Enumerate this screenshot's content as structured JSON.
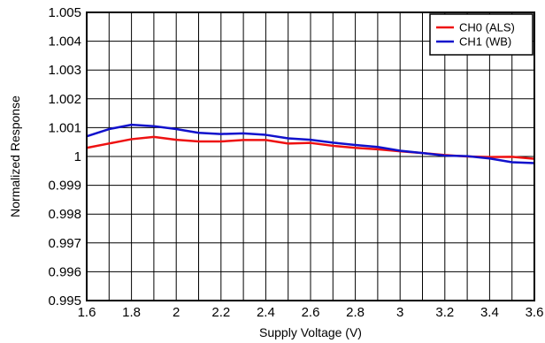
{
  "chart_data": {
    "type": "line",
    "title": "",
    "xlabel": "Supply Voltage (V)",
    "ylabel": "Normalized Response",
    "xlim": [
      1.6,
      3.6
    ],
    "ylim": [
      0.995,
      1.005
    ],
    "x_ticks": [
      "1.6",
      "1.8",
      "2",
      "2.2",
      "2.4",
      "2.6",
      "2.8",
      "3",
      "3.2",
      "3.4",
      "3.6"
    ],
    "y_ticks": [
      "0.995",
      "0.996",
      "0.997",
      "0.998",
      "0.999",
      "1",
      "1.001",
      "1.002",
      "1.003",
      "1.004",
      "1.005"
    ],
    "x_tick_values": [
      1.6,
      1.8,
      2.0,
      2.2,
      2.4,
      2.6,
      2.8,
      3.0,
      3.2,
      3.4,
      3.6
    ],
    "y_tick_values": [
      0.995,
      0.996,
      0.997,
      0.998,
      0.999,
      1.0,
      1.001,
      1.002,
      1.003,
      1.004,
      1.005
    ],
    "grid": true,
    "minor_x_gridlines": true,
    "legend_position": "top-right",
    "x": [
      1.6,
      1.7,
      1.8,
      1.9,
      2.0,
      2.1,
      2.2,
      2.3,
      2.4,
      2.5,
      2.6,
      2.7,
      2.8,
      2.9,
      3.0,
      3.1,
      3.2,
      3.3,
      3.4,
      3.5,
      3.6
    ],
    "series": [
      {
        "name": "CH0 (ALS)",
        "color": "#ee1111",
        "values": [
          1.0003,
          1.00045,
          1.0006,
          1.00068,
          1.00058,
          1.00052,
          1.00052,
          1.00057,
          1.00057,
          1.00045,
          1.00047,
          1.00037,
          1.0003,
          1.00025,
          1.00018,
          1.00012,
          1.00005,
          1.0,
          0.99998,
          0.99999,
          0.99992
        ]
      },
      {
        "name": "CH1 (WB)",
        "color": "#1111cc",
        "values": [
          1.0007,
          1.00095,
          1.0011,
          1.00105,
          1.00095,
          1.00082,
          1.00078,
          1.0008,
          1.00075,
          1.00063,
          1.00058,
          1.00048,
          1.0004,
          1.00033,
          1.0002,
          1.00012,
          1.00003,
          1.00001,
          0.99993,
          0.9998,
          0.99977
        ]
      }
    ]
  }
}
